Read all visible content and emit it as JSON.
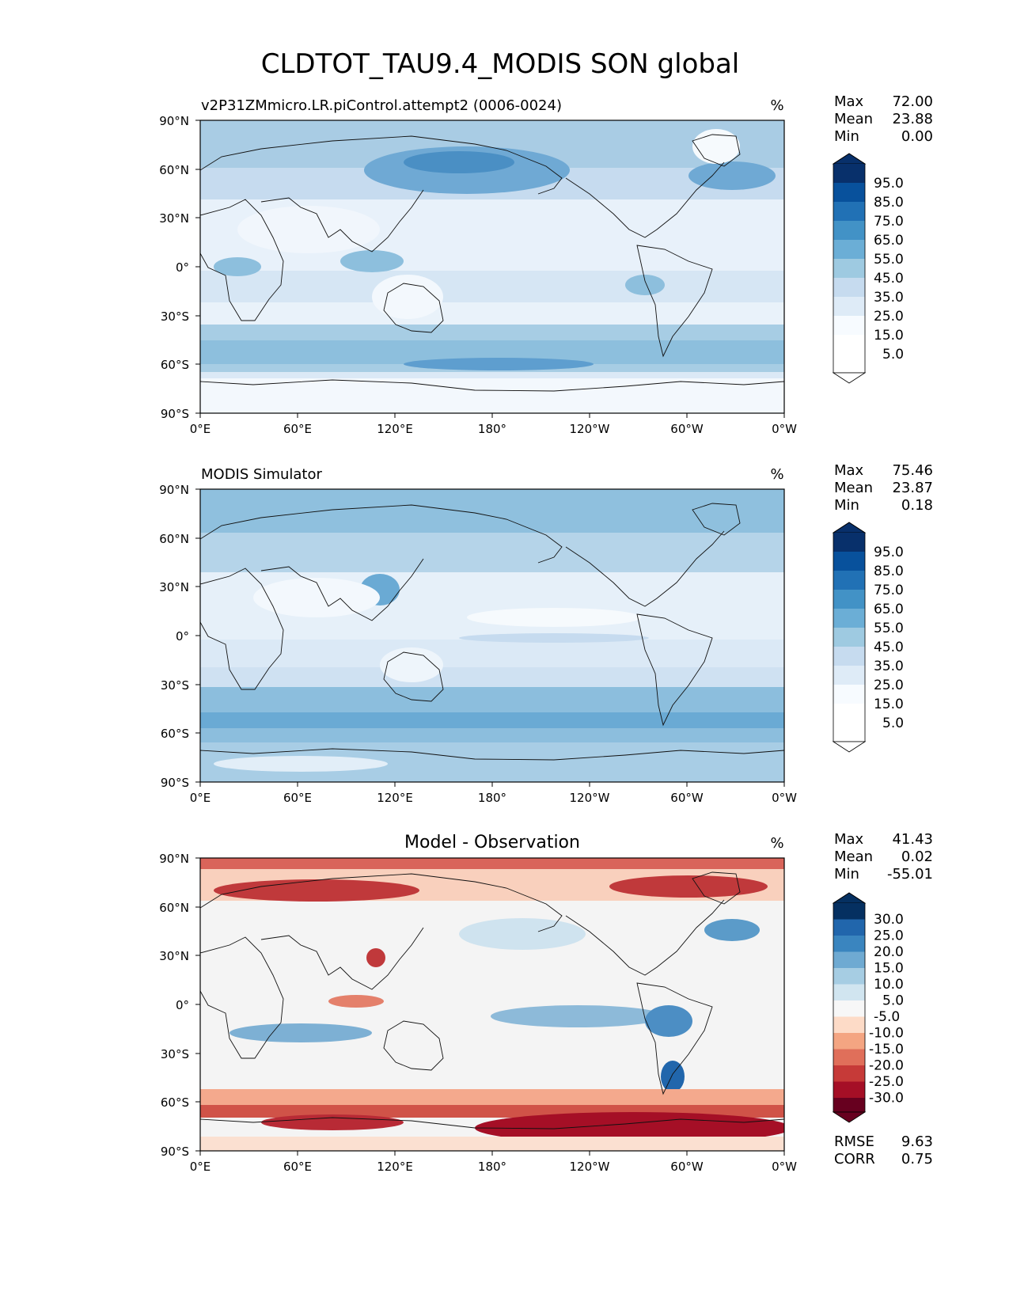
{
  "figure_title": "CLDTOT_TAU9.4_MODIS SON global",
  "lon_ticks": [
    "0°E",
    "60°E",
    "120°E",
    "180°",
    "120°W",
    "60°W",
    "0°W"
  ],
  "lat_ticks": [
    "90°N",
    "60°N",
    "30°N",
    "0°",
    "30°S",
    "60°S",
    "90°S"
  ],
  "chart_data": [
    {
      "type": "heatmap",
      "title": "",
      "left_title": "v2P31ZMmicro.LR.piControl.attempt2 (0006-0024)",
      "units": "%",
      "xlim": [
        0,
        360
      ],
      "ylim": [
        -90,
        90
      ],
      "stats": [
        {
          "label": "Max",
          "value": "72.00"
        },
        {
          "label": "Mean",
          "value": "23.88"
        },
        {
          "label": "Min",
          "value": "0.00"
        }
      ],
      "colorbar_ticks": [
        "95.0",
        "85.0",
        "75.0",
        "65.0",
        "55.0",
        "45.0",
        "35.0",
        "25.0",
        "15.0",
        "5.0"
      ],
      "colorbar_colors": [
        "#08306b",
        "#08519c",
        "#2171b5",
        "#4292c6",
        "#6baed6",
        "#9ecae1",
        "#c6dbef",
        "#deebf7",
        "#f7fbff"
      ],
      "colorbar_extend_colors": [
        "#08306b",
        "#ffffff"
      ]
    },
    {
      "type": "heatmap",
      "title": "",
      "left_title": "MODIS Simulator",
      "units": "%",
      "xlim": [
        0,
        360
      ],
      "ylim": [
        -90,
        90
      ],
      "stats": [
        {
          "label": "Max",
          "value": "75.46"
        },
        {
          "label": "Mean",
          "value": "23.87"
        },
        {
          "label": "Min",
          "value": "0.18"
        }
      ],
      "colorbar_ticks": [
        "95.0",
        "85.0",
        "75.0",
        "65.0",
        "55.0",
        "45.0",
        "35.0",
        "25.0",
        "15.0",
        "5.0"
      ],
      "colorbar_colors": [
        "#08306b",
        "#08519c",
        "#2171b5",
        "#4292c6",
        "#6baed6",
        "#9ecae1",
        "#c6dbef",
        "#deebf7",
        "#f7fbff"
      ],
      "colorbar_extend_colors": [
        "#08306b",
        "#ffffff"
      ]
    },
    {
      "type": "heatmap",
      "title": "Model - Observation",
      "left_title": "",
      "units": "%",
      "xlim": [
        0,
        360
      ],
      "ylim": [
        -90,
        90
      ],
      "stats": [
        {
          "label": "Max",
          "value": "41.43"
        },
        {
          "label": "Mean",
          "value": "0.02"
        },
        {
          "label": "Min",
          "value": "-55.01"
        }
      ],
      "extra_stats": [
        {
          "label": "RMSE",
          "value": "9.63"
        },
        {
          "label": "CORR",
          "value": "0.75"
        }
      ],
      "colorbar_ticks": [
        "30.0",
        "25.0",
        "20.0",
        "15.0",
        "10.0",
        "5.0",
        "-5.0",
        "-10.0",
        "-15.0",
        "-20.0",
        "-25.0",
        "-30.0"
      ],
      "colorbar_colors": [
        "#2166ac",
        "#3a85bf",
        "#6faad2",
        "#a6cde3",
        "#d1e5f0",
        "#f7f7f7",
        "#fddbc7",
        "#f4a582",
        "#e06f5a",
        "#c63a38",
        "#a50f26"
      ],
      "colorbar_extend_colors": [
        "#053061",
        "#67001f"
      ]
    }
  ]
}
